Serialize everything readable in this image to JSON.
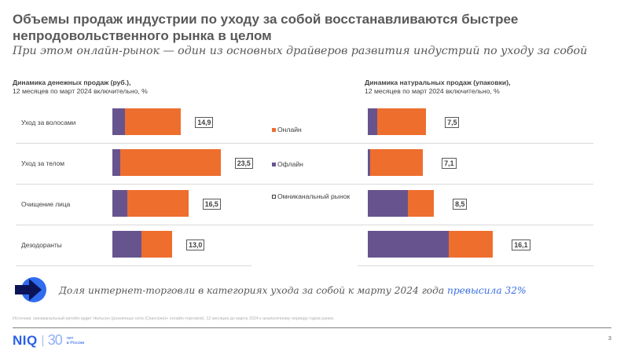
{
  "header": {
    "title_line1": "Объемы продаж индустрии по уходу за собой восстанавливаются быстрее",
    "title_line2": "непродовольственного рынка в целом",
    "subtitle": "При этом онлайн-рынок — один из основных драйверов развития индустрий по уходу за собой"
  },
  "legend": {
    "online": "Онлайн",
    "offline": "Офлайн",
    "omni": "Омниканальный рынок",
    "colors": {
      "online": "#ee6e2e",
      "offline": "#67548f",
      "omni": "#ffffff"
    }
  },
  "chart_data": [
    {
      "type": "bar",
      "orientation": "horizontal",
      "stacked": true,
      "title": "Динамика денежных продаж (руб.),",
      "subtitle": "12 месяцев по март 2024 включительно, %",
      "categories": [
        "Уход за волосами",
        "Уход за телом",
        "Очищение лица",
        "Дезодоранты"
      ],
      "totals": [
        14.9,
        23.5,
        16.5,
        13.0
      ],
      "total_labels": [
        "14,9",
        "23,5",
        "16,5",
        "13,0"
      ],
      "split_note": "Offline/online split estimated from bar pixel widths; only totals are labelled on the slide.",
      "series": [
        {
          "name": "Офлайн",
          "values_approx": [
            2.7,
            1.7,
            3.2,
            6.3
          ]
        },
        {
          "name": "Онлайн",
          "values_approx": [
            12.2,
            21.8,
            13.3,
            6.7
          ]
        }
      ]
    },
    {
      "type": "bar",
      "orientation": "horizontal",
      "stacked": true,
      "title": "Динамика натуральных продаж (упаковки),",
      "subtitle": "12 месяцев по март 2024 включительно, %",
      "categories": [
        "Уход за волосами",
        "Уход за телом",
        "Очищение лица",
        "Дезодоранты"
      ],
      "totals": [
        7.5,
        7.1,
        8.5,
        16.1
      ],
      "total_labels": [
        "7,5",
        "7,1",
        "8,5",
        "16,1"
      ],
      "split_note": "Offline/online split estimated from bar pixel widths; only totals are labelled on the slide.",
      "series": [
        {
          "name": "Офлайн",
          "values_approx": [
            1.2,
            0.3,
            5.2,
            10.4
          ]
        },
        {
          "name": "Онлайн",
          "values_approx": [
            6.3,
            6.8,
            3.3,
            5.7
          ]
        }
      ]
    }
  ],
  "callout": {
    "text": "Доля интернет-торговли в категориях ухода за собой к марту 2024 года ",
    "highlight": "превысила 32%"
  },
  "footer": {
    "source": "Источник: омниканальный ритейл-аудит Нильсен (розничные сети (Скантрек)+ онлайн-торговля). 12 месяцев до марта 2024 к аналогичному периоду годом ранее.",
    "logo_brand": "NIQ",
    "logo_years": "30",
    "logo_sub1": "лет",
    "logo_sub2": "в России",
    "page": "3"
  }
}
